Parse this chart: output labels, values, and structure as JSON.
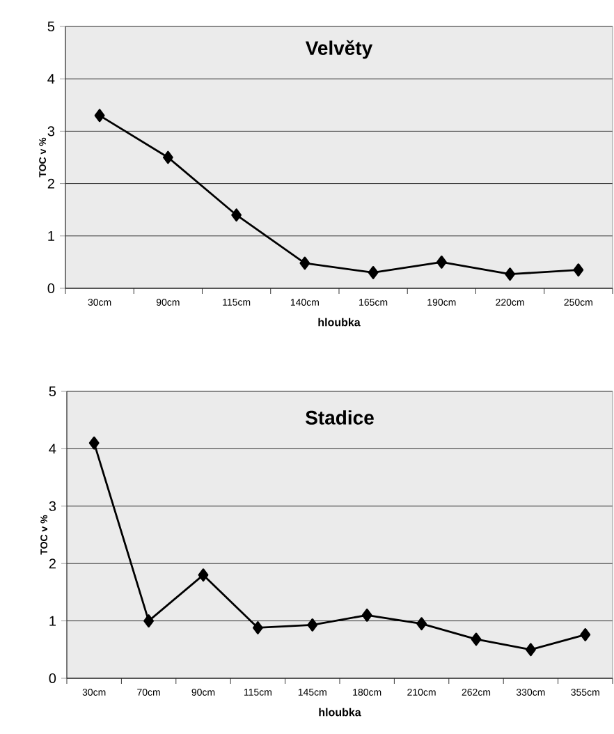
{
  "chart_data": [
    {
      "type": "line",
      "title": "Velvěty",
      "xlabel": "hloubka",
      "ylabel": "TOC v %",
      "categories": [
        "30cm",
        "90cm",
        "115cm",
        "140cm",
        "165cm",
        "190cm",
        "220cm",
        "250cm"
      ],
      "values": [
        3.3,
        2.5,
        1.4,
        0.48,
        0.3,
        0.5,
        0.27,
        0.35
      ],
      "color": "#000000",
      "marker": "diamond",
      "grid": "y",
      "ylim": [
        0,
        5
      ],
      "yticks": [
        0,
        1,
        2,
        3,
        4,
        5
      ]
    },
    {
      "type": "line",
      "title": "Stadice",
      "xlabel": "hloubka",
      "ylabel": "TOC v %",
      "categories": [
        "30cm",
        "70cm",
        "90cm",
        "115cm",
        "145cm",
        "180cm",
        "210cm",
        "262cm",
        "330cm",
        "355cm"
      ],
      "values": [
        4.1,
        1.0,
        1.8,
        0.88,
        0.93,
        1.1,
        0.95,
        0.68,
        0.5,
        0.76
      ],
      "color": "#000000",
      "marker": "diamond",
      "grid": "y",
      "ylim": [
        0,
        5
      ],
      "yticks": [
        0,
        1,
        2,
        3,
        4,
        5
      ]
    }
  ]
}
